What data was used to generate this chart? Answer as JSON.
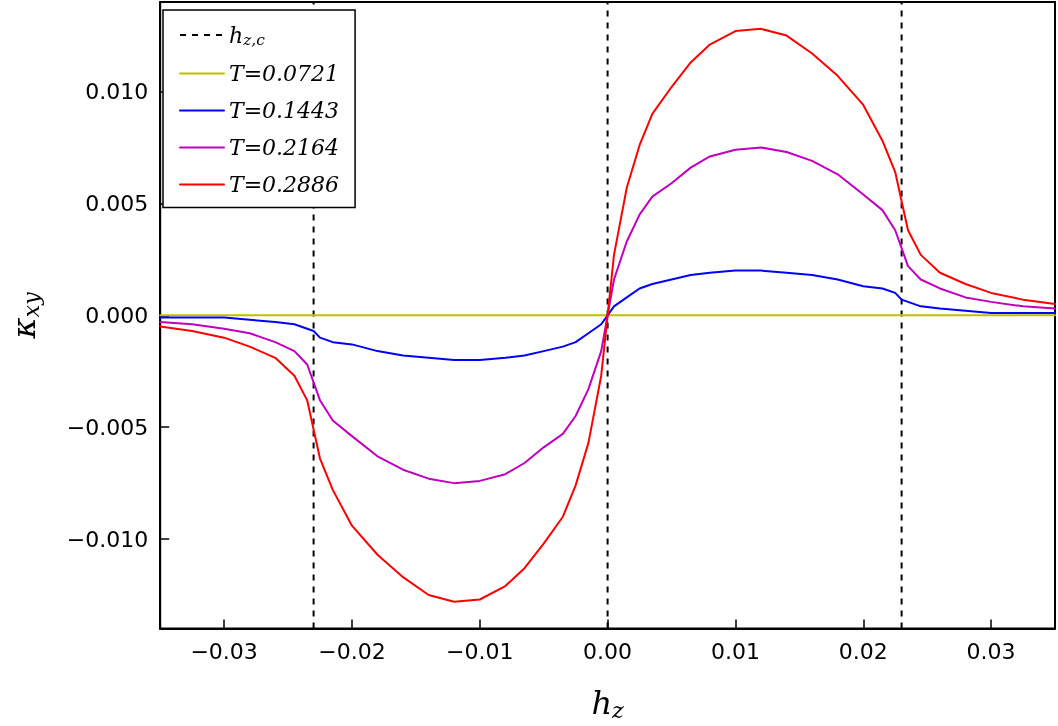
{
  "chart_data": {
    "type": "line",
    "xlabel": "h$_{z}$",
    "ylabel": "κ$_{xy}$",
    "xlim": [
      -0.035,
      0.035
    ],
    "ylim": [
      -0.014,
      0.014
    ],
    "xticks": [
      {
        "value": -0.03,
        "label": "−0.03"
      },
      {
        "value": -0.02,
        "label": "−0.02"
      },
      {
        "value": -0.01,
        "label": "−0.01"
      },
      {
        "value": 0,
        "label": "0.00"
      },
      {
        "value": 0.01,
        "label": "0.01"
      },
      {
        "value": 0.02,
        "label": "0.02"
      },
      {
        "value": 0.03,
        "label": "0.03"
      }
    ],
    "yticks": [
      {
        "value": -0.01,
        "label": "−0.010"
      },
      {
        "value": -0.005,
        "label": "−0.005"
      },
      {
        "value": 0,
        "label": "0.000"
      },
      {
        "value": 0.005,
        "label": "0.005"
      },
      {
        "value": 0.01,
        "label": "0.010"
      }
    ],
    "grid": false,
    "legend": "top left",
    "marker": "none",
    "line_style": "solid",
    "x": [
      -0.035,
      -0.0325,
      -0.03,
      -0.028,
      -0.026,
      -0.0245,
      -0.0235,
      -0.023,
      -0.0225,
      -0.0215,
      -0.02,
      -0.018,
      -0.016,
      -0.014,
      -0.012,
      -0.01,
      -0.008,
      -0.0065,
      -0.005,
      -0.0035,
      -0.0025,
      -0.0015,
      -0.0005,
      0,
      0.0005,
      0.0015,
      0.0025,
      0.0035,
      0.005,
      0.0065,
      0.008,
      0.01,
      0.012,
      0.014,
      0.016,
      0.018,
      0.02,
      0.0215,
      0.0225,
      0.023,
      0.0235,
      0.0245,
      0.026,
      0.028,
      0.03,
      0.0325,
      0.035
    ],
    "series": [
      {
        "name": "T=0.0721",
        "color": "#bfbf00",
        "values": [
          0,
          0,
          0,
          0,
          0,
          0,
          0,
          0,
          0,
          0,
          0,
          0,
          0,
          0,
          0,
          0,
          0,
          0,
          0,
          0,
          0,
          0,
          0,
          0,
          0,
          0,
          0,
          0,
          0,
          0,
          0,
          0,
          0,
          0,
          0,
          0,
          0,
          0,
          0,
          0,
          0,
          0,
          0,
          0,
          0,
          0,
          0
        ]
      },
      {
        "name": "T=0.1443",
        "color": "#0000ff",
        "values": [
          -0.0001,
          -0.0001,
          -0.0001,
          -0.0002,
          -0.0003,
          -0.0004,
          -0.0006,
          -0.0007,
          -0.001,
          -0.0012,
          -0.0013,
          -0.0016,
          -0.0018,
          -0.0019,
          -0.002,
          -0.002,
          -0.0019,
          -0.0018,
          -0.0016,
          -0.0014,
          -0.0012,
          -0.0008,
          -0.0004,
          0,
          0.0004,
          0.0008,
          0.0012,
          0.0014,
          0.0016,
          0.0018,
          0.0019,
          0.002,
          0.002,
          0.0019,
          0.0018,
          0.0016,
          0.0013,
          0.0012,
          0.001,
          0.0007,
          0.0006,
          0.0004,
          0.0003,
          0.0002,
          0.0001,
          0.0001,
          0.0001
        ]
      },
      {
        "name": "T=0.2164",
        "color": "#bf00bf",
        "values": [
          -0.0003,
          -0.0004,
          -0.0006,
          -0.0008,
          -0.0012,
          -0.0016,
          -0.0022,
          -0.003,
          -0.0038,
          -0.0047,
          -0.0054,
          -0.0063,
          -0.0069,
          -0.0073,
          -0.0075,
          -0.0074,
          -0.0071,
          -0.0066,
          -0.0059,
          -0.0053,
          -0.0045,
          -0.0033,
          -0.0016,
          0,
          0.0016,
          0.0033,
          0.0045,
          0.0053,
          0.0059,
          0.0066,
          0.0071,
          0.0074,
          0.0075,
          0.0073,
          0.0069,
          0.0063,
          0.0054,
          0.0047,
          0.0038,
          0.003,
          0.0022,
          0.0016,
          0.0012,
          0.0008,
          0.0006,
          0.0004,
          0.0003
        ]
      },
      {
        "name": "T=0.2886",
        "color": "#ff0000",
        "values": [
          -0.0005,
          -0.0007,
          -0.001,
          -0.0014,
          -0.0019,
          -0.0027,
          -0.0038,
          -0.0051,
          -0.0064,
          -0.0078,
          -0.0094,
          -0.0107,
          -0.0117,
          -0.0125,
          -0.0128,
          -0.0127,
          -0.0121,
          -0.0113,
          -0.0102,
          -0.009,
          -0.0076,
          -0.0057,
          -0.0027,
          0,
          0.0027,
          0.0057,
          0.0076,
          0.009,
          0.0102,
          0.0113,
          0.0121,
          0.0127,
          0.0128,
          0.0125,
          0.0117,
          0.0107,
          0.0094,
          0.0078,
          0.0064,
          0.0051,
          0.0038,
          0.0027,
          0.0019,
          0.0014,
          0.001,
          0.0007,
          0.0005
        ]
      }
    ],
    "ref_lines": [
      {
        "axis": "x",
        "value": -0.023,
        "label": "h$_{z,c}$",
        "color": "#000000",
        "line_style": "dashed"
      },
      {
        "axis": "x",
        "value": 0,
        "color": "#000000",
        "line_style": "dashed"
      },
      {
        "axis": "x",
        "value": 0.023,
        "color": "#000000",
        "line_style": "dashed"
      }
    ]
  }
}
